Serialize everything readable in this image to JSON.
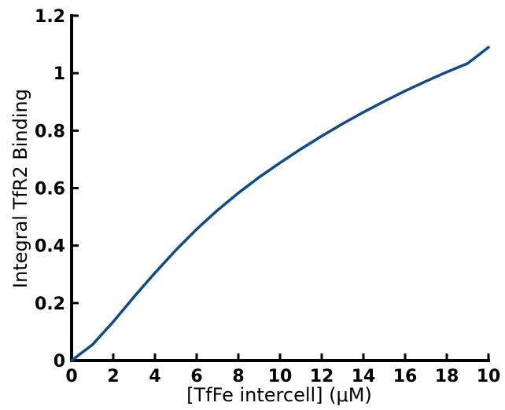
{
  "chart_data": {
    "type": "line",
    "title": "",
    "xlabel": "[TfFe intercell] (μM)",
    "ylabel": "Integral TfR2 Binding",
    "xlim": [
      0,
      10
    ],
    "ylim": [
      0,
      1.2
    ],
    "x_ticks": [
      "0",
      "2",
      "4",
      "6",
      "8",
      "10",
      "12",
      "14",
      "16",
      "18",
      "10"
    ],
    "y_ticks": [
      "0",
      "0.2",
      "0.4",
      "0.6",
      "0.8",
      "1",
      "1.2"
    ],
    "grid": false,
    "line_color": "#0f4a8a",
    "series": [
      {
        "x": [
          0,
          0.5,
          1,
          1.5,
          2,
          2.5,
          3,
          3.5,
          4,
          4.5,
          5,
          5.5,
          6,
          6.5,
          7,
          7.5,
          8,
          8.5,
          9,
          9.5,
          10
        ],
        "values": [
          0,
          0.055,
          0.135,
          0.222,
          0.305,
          0.384,
          0.457,
          0.523,
          0.583,
          0.638,
          0.688,
          0.736,
          0.781,
          0.824,
          0.864,
          0.902,
          0.938,
          0.972,
          1.004,
          1.034,
          1.09
        ]
      }
    ]
  }
}
